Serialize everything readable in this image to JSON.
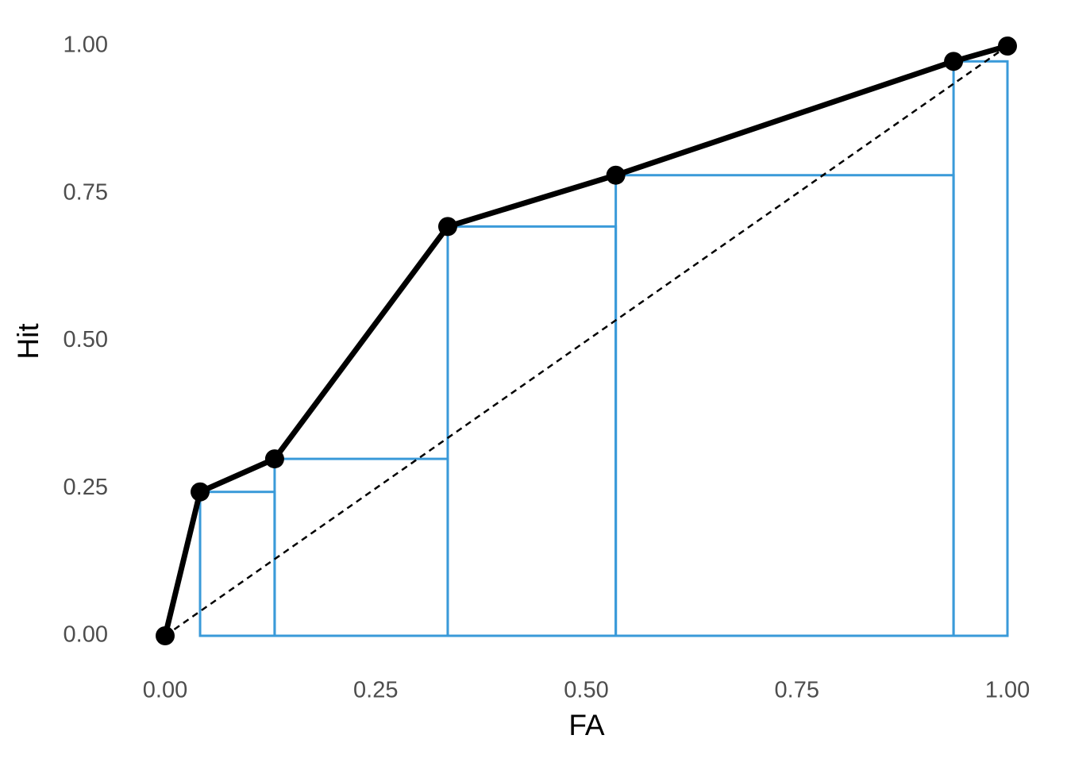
{
  "chart_data": {
    "type": "line",
    "x_label": "FA",
    "y_label": "Hit",
    "x": [
      0,
      0.0415,
      0.13,
      0.3355,
      0.535,
      0.936,
      1
    ],
    "values": [
      0,
      0.244,
      0.3,
      0.694,
      0.781,
      0.974,
      1
    ],
    "color": "#000000",
    "step_color": "#3a9ad9",
    "xlim": [
      0,
      1
    ],
    "ylim": [
      0,
      1
    ],
    "xticks": [
      {
        "value": 0,
        "label": "0.00"
      },
      {
        "value": 0.25,
        "label": "0.25"
      },
      {
        "value": 0.5,
        "label": "0.50"
      },
      {
        "value": 0.75,
        "label": "0.75"
      },
      {
        "value": 1,
        "label": "1.00"
      }
    ],
    "yticks": [
      {
        "value": 0,
        "label": "0.00"
      },
      {
        "value": 0.25,
        "label": "0.25"
      },
      {
        "value": 0.5,
        "label": "0.50"
      },
      {
        "value": 0.75,
        "label": "0.75"
      },
      {
        "value": 1,
        "label": "1.00"
      }
    ],
    "grid": false
  }
}
